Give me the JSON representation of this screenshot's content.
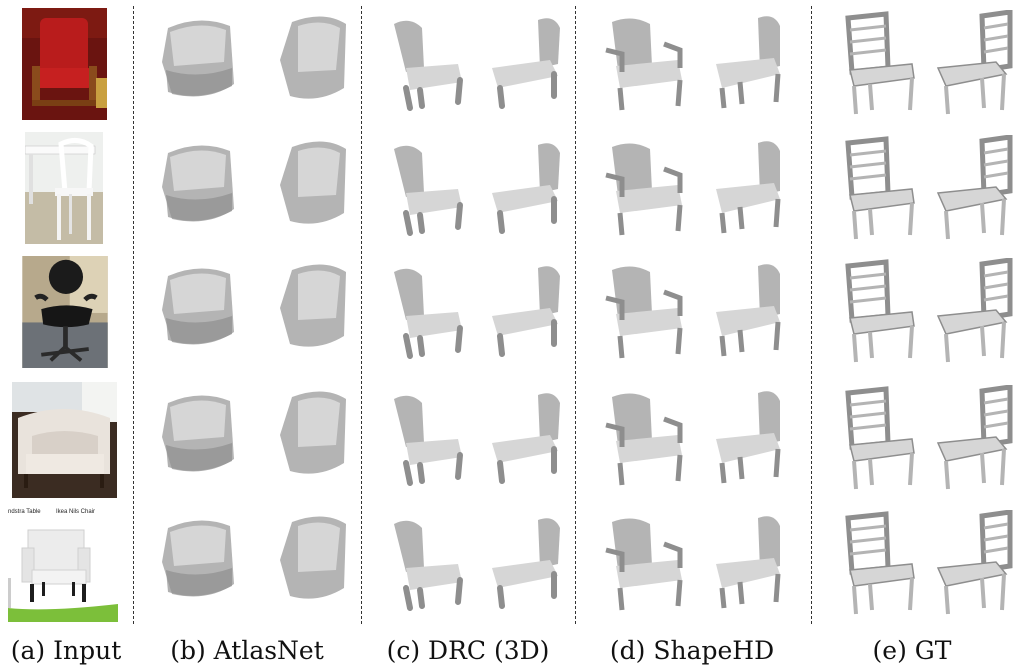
{
  "captions": {
    "input": "(a) Input",
    "atlasnet": "(b) AtlasNet",
    "drc": "(c) DRC (3D)",
    "shapehd": "(d) ShapeHD",
    "gt": "(e) GT"
  },
  "input_photo_text": {
    "left": "ndstra Table",
    "right": "Ikea Nils Chair"
  },
  "colors": {
    "mesh_light": "#d6d6d6",
    "mesh_mid": "#b4b4b4",
    "mesh_dark": "#8e8e8e",
    "separator": "#333333"
  }
}
